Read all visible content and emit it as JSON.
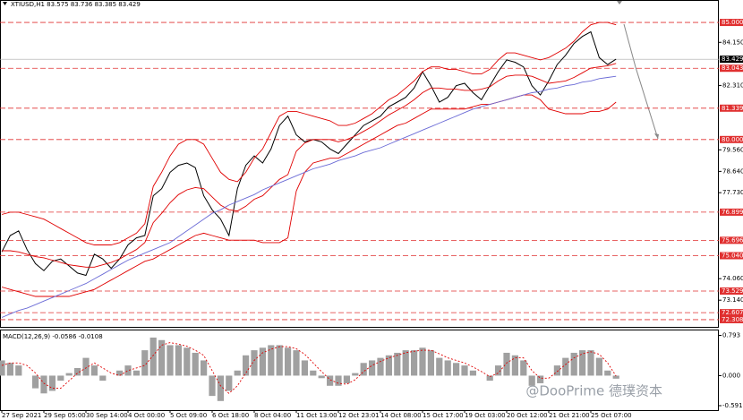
{
  "chart_data": [
    {
      "type": "line",
      "title": "XTIUSD,H1 83.575 83.736 83.385 83.429",
      "x": [
        "27 Sep 2021",
        null,
        null,
        null,
        null,
        "29 Sep 05:00",
        null,
        null,
        null,
        null,
        "30 Sep 14:00",
        null,
        null,
        null,
        null,
        "4 Oct 00:00",
        null,
        null,
        null,
        null,
        "5 Oct 09:00",
        null,
        null,
        null,
        null,
        "6 Oct 18:00",
        null,
        null,
        null,
        null,
        "8 Oct 04:00",
        null,
        null,
        null,
        null,
        "11 Oct 13:00",
        null,
        null,
        null,
        null,
        "12 Oct 23:01",
        null,
        null,
        null,
        null,
        "14 Oct 08:00",
        null,
        null,
        null,
        null,
        "15 Oct 17:00",
        null,
        null,
        null,
        null,
        "19 Oct 03:00",
        null,
        null,
        null,
        null,
        "20 Oct 12:00",
        null,
        null,
        null,
        null,
        "21 Oct 21:00",
        null,
        null,
        null,
        null,
        "25 Oct 07:00",
        null,
        null,
        null
      ],
      "ylim": [
        72.0,
        85.92
      ],
      "yticks": [
        {
          "value": 84.15,
          "label": "84.150"
        },
        {
          "value": 82.31,
          "label": "82.310"
        },
        {
          "value": 79.56,
          "label": "79.560"
        },
        {
          "value": 78.64,
          "label": "78.640"
        },
        {
          "value": 77.73,
          "label": "77.730"
        },
        {
          "value": 74.06,
          "label": "74.060"
        },
        {
          "value": 73.14,
          "label": "73.140"
        }
      ],
      "levels": [
        {
          "value": 85,
          "label": "85.000"
        },
        {
          "value": 83.043,
          "label": "83.043"
        },
        {
          "value": 81.339,
          "label": "81.339"
        },
        {
          "value": 80,
          "label": "80.000"
        },
        {
          "value": 76.899,
          "label": "76.899"
        },
        {
          "value": 75.696,
          "label": "75.696"
        },
        {
          "value": 75.04,
          "label": "75.040"
        },
        {
          "value": 73.529,
          "label": "73.529"
        },
        {
          "value": 72.607,
          "label": "72.607"
        },
        {
          "value": 72.308,
          "label": "72.308"
        }
      ],
      "level_color": "#e03030",
      "last_price": {
        "value": 83.429,
        "label": "83.429"
      },
      "series": [
        {
          "color": "#000000",
          "values": [
            75.2,
            75.9,
            76.1,
            75.3,
            74.7,
            74.4,
            74.8,
            74.9,
            74.6,
            74.3,
            74.2,
            75.1,
            74.9,
            74.5,
            74.9,
            75.5,
            75.8,
            75.9,
            77.6,
            77.9,
            78.6,
            78.9,
            79.0,
            78.8,
            77.6,
            77.0,
            76.6,
            75.9,
            77.9,
            78.9,
            79.3,
            79.0,
            79.6,
            80.6,
            81.0,
            80.2,
            79.9,
            80.0,
            79.9,
            79.6,
            79.4,
            79.8,
            80.2,
            80.6,
            80.8,
            81.0,
            81.4,
            81.6,
            81.8,
            82.2,
            82.9,
            82.3,
            81.6,
            81.8,
            82.3,
            82.4,
            82.0,
            81.7,
            82.3,
            82.9,
            83.4,
            83.3,
            83.1,
            82.3,
            81.9,
            82.5,
            83.2,
            83.6,
            84.1,
            84.4,
            84.6,
            83.5,
            83.2,
            83.429
          ]
        },
        {
          "color": "#e00000",
          "values": [
            76.8,
            76.9,
            76.9,
            76.8,
            76.7,
            76.6,
            76.4,
            76.2,
            76.0,
            75.8,
            75.6,
            75.5,
            75.5,
            75.5,
            75.6,
            75.8,
            76.0,
            76.4,
            78.0,
            78.6,
            79.3,
            79.8,
            80.0,
            80.0,
            79.8,
            79.2,
            78.6,
            78.3,
            78.2,
            78.6,
            79.2,
            79.6,
            80.3,
            81.0,
            81.2,
            81.2,
            81.1,
            81.0,
            80.9,
            80.8,
            80.6,
            80.6,
            80.7,
            80.9,
            81.1,
            81.4,
            81.7,
            81.9,
            82.2,
            82.5,
            82.9,
            83.1,
            83.1,
            83.0,
            83.0,
            82.9,
            82.8,
            82.8,
            83.0,
            83.4,
            83.7,
            83.7,
            83.6,
            83.5,
            83.4,
            83.5,
            83.7,
            83.9,
            84.2,
            84.6,
            84.9,
            85.0,
            85.0,
            84.9
          ]
        },
        {
          "color": "#e00000",
          "values": [
            75.25,
            75.25,
            75.2,
            75.1,
            75.0,
            74.95,
            74.85,
            74.75,
            74.65,
            74.6,
            74.55,
            74.55,
            74.65,
            74.75,
            74.9,
            75.1,
            75.3,
            75.6,
            76.45,
            76.85,
            77.3,
            77.65,
            77.85,
            77.95,
            77.9,
            77.55,
            77.2,
            77.0,
            76.95,
            77.15,
            77.45,
            77.6,
            77.95,
            78.3,
            78.5,
            79.5,
            79.85,
            80.0,
            80.0,
            80.0,
            79.9,
            80.0,
            80.15,
            80.35,
            80.55,
            80.8,
            81.05,
            81.25,
            81.45,
            81.7,
            82.0,
            82.2,
            82.2,
            82.15,
            82.15,
            82.1,
            82.1,
            82.15,
            82.25,
            82.5,
            82.7,
            82.75,
            82.75,
            82.7,
            82.55,
            82.4,
            82.45,
            82.5,
            82.65,
            82.85,
            83.05,
            83.1,
            83.15,
            83.25
          ]
        },
        {
          "color": "#e00000",
          "values": [
            73.7,
            73.6,
            73.5,
            73.4,
            73.3,
            73.3,
            73.3,
            73.3,
            73.3,
            73.4,
            73.5,
            73.6,
            73.8,
            74.0,
            74.2,
            74.4,
            74.6,
            74.8,
            74.9,
            75.1,
            75.3,
            75.5,
            75.7,
            75.9,
            76.0,
            75.9,
            75.8,
            75.7,
            75.7,
            75.7,
            75.7,
            75.6,
            75.6,
            75.6,
            75.8,
            77.8,
            78.6,
            79.0,
            79.1,
            79.2,
            79.2,
            79.4,
            79.6,
            79.8,
            80.0,
            80.2,
            80.4,
            80.6,
            80.7,
            80.9,
            81.1,
            81.3,
            81.3,
            81.3,
            81.3,
            81.3,
            81.4,
            81.5,
            81.5,
            81.6,
            81.7,
            81.8,
            81.9,
            81.9,
            81.7,
            81.3,
            81.2,
            81.1,
            81.1,
            81.1,
            81.2,
            81.2,
            81.3,
            81.6
          ]
        },
        {
          "color": "#6b6bd6",
          "values": [
            72.4,
            72.55,
            72.7,
            72.8,
            72.95,
            73.1,
            73.25,
            73.4,
            73.55,
            73.7,
            73.85,
            74.05,
            74.25,
            74.45,
            74.65,
            74.85,
            75.0,
            75.15,
            75.3,
            75.45,
            75.6,
            75.85,
            76.1,
            76.35,
            76.6,
            76.85,
            77.0,
            77.2,
            77.35,
            77.5,
            77.65,
            77.85,
            78.0,
            78.15,
            78.3,
            78.45,
            78.6,
            78.75,
            78.85,
            78.95,
            79.1,
            79.2,
            79.3,
            79.45,
            79.55,
            79.65,
            79.8,
            79.95,
            80.1,
            80.25,
            80.4,
            80.55,
            80.7,
            80.85,
            81.0,
            81.15,
            81.3,
            81.4,
            81.5,
            81.6,
            81.7,
            81.8,
            81.9,
            82.0,
            82.05,
            82.15,
            82.2,
            82.3,
            82.35,
            82.45,
            82.5,
            82.6,
            82.65,
            82.7
          ]
        }
      ]
    },
    {
      "type": "macd",
      "title": "MACD(12,26,9) -0.0586 -0.0108",
      "ylim": [
        -0.68,
        0.89
      ],
      "yticks": [
        {
          "value": 0.793,
          "label": "0.793"
        },
        {
          "value": 0,
          "label": "0.000"
        },
        {
          "value": -0.5918,
          "label": "-0.5918"
        }
      ],
      "series": [
        {
          "color": "#a0a0a0",
          "values": [
            0.3,
            0.25,
            0.2,
            0.0,
            -0.25,
            -0.35,
            -0.3,
            -0.1,
            0.05,
            0.15,
            0.35,
            0.2,
            -0.1,
            0.0,
            0.1,
            0.2,
            0.1,
            0.5,
            0.75,
            0.7,
            0.6,
            0.6,
            0.55,
            0.45,
            0.3,
            -0.4,
            -0.5,
            -0.3,
            0.1,
            0.4,
            0.5,
            0.55,
            0.6,
            0.6,
            0.55,
            0.5,
            0.3,
            0.1,
            -0.05,
            -0.2,
            -0.2,
            -0.15,
            0.05,
            0.25,
            0.3,
            0.35,
            0.4,
            0.45,
            0.5,
            0.5,
            0.55,
            0.5,
            0.35,
            0.3,
            0.25,
            0.2,
            0.1,
            0.0,
            -0.1,
            0.2,
            0.45,
            0.4,
            0.3,
            -0.2,
            -0.15,
            0.0,
            0.2,
            0.35,
            0.45,
            0.5,
            0.5,
            0.35,
            0.1,
            -0.06
          ]
        },
        {
          "color": "#e00000",
          "values": [
            0.2,
            0.25,
            0.25,
            0.2,
            0.05,
            -0.15,
            -0.25,
            -0.25,
            -0.1,
            0.05,
            0.15,
            0.25,
            0.15,
            0.05,
            0.0,
            0.1,
            0.15,
            0.2,
            0.4,
            0.6,
            0.65,
            0.62,
            0.58,
            0.5,
            0.4,
            0.1,
            -0.2,
            -0.35,
            -0.2,
            0.05,
            0.3,
            0.45,
            0.52,
            0.57,
            0.57,
            0.53,
            0.42,
            0.25,
            0.08,
            -0.08,
            -0.15,
            -0.17,
            -0.08,
            0.08,
            0.2,
            0.28,
            0.35,
            0.4,
            0.45,
            0.48,
            0.5,
            0.5,
            0.43,
            0.35,
            0.3,
            0.25,
            0.17,
            0.08,
            -0.02,
            0.05,
            0.25,
            0.35,
            0.35,
            0.1,
            -0.05,
            -0.05,
            0.08,
            0.22,
            0.35,
            0.43,
            0.47,
            0.42,
            0.25,
            -0.01
          ]
        }
      ]
    }
  ],
  "watermark": "@DooPrime 德璞资本"
}
